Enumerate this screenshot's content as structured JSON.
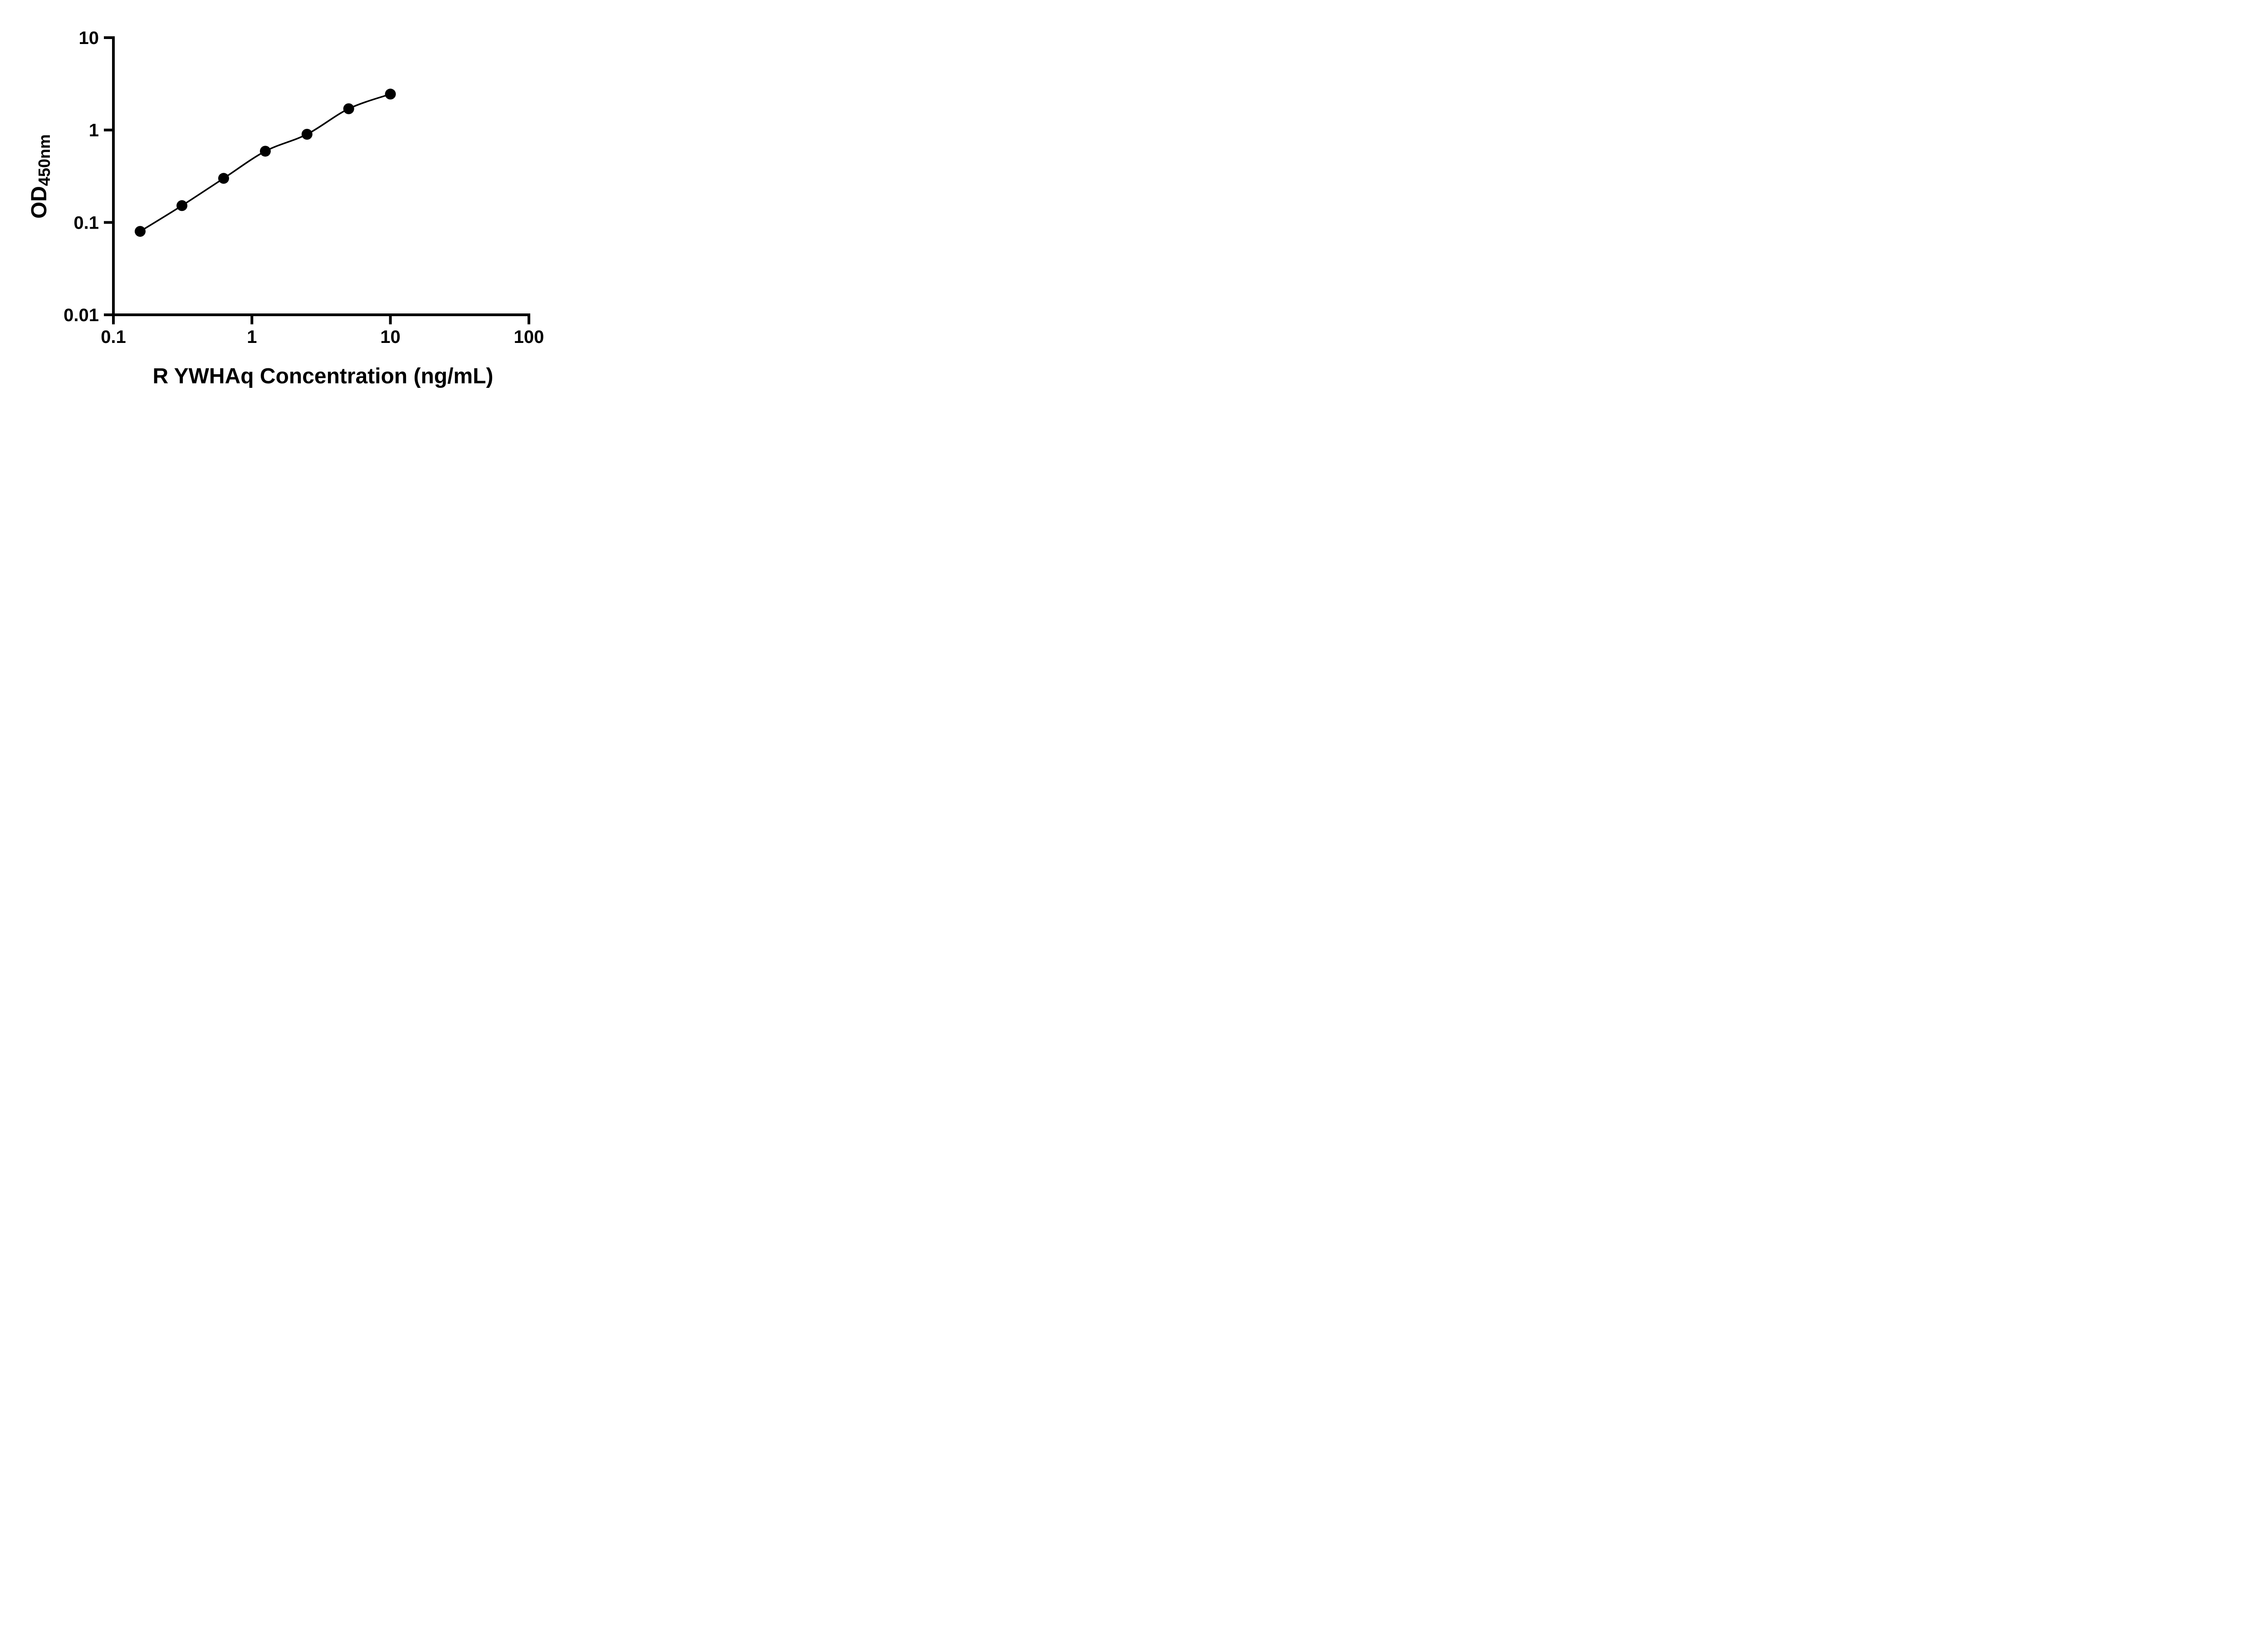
{
  "chart_data": {
    "type": "line",
    "title": "",
    "xlabel": "R YWHAq Concentration (ng/mL)",
    "ylabel_main": "OD",
    "ylabel_sub": "450nm",
    "x_scale": "log",
    "y_scale": "log",
    "xlim": [
      0.1,
      100
    ],
    "ylim": [
      0.01,
      10
    ],
    "grid": false,
    "legend": false,
    "x_ticks": [
      {
        "value": 0.1,
        "label": "0.1"
      },
      {
        "value": 1,
        "label": "1"
      },
      {
        "value": 10,
        "label": "10"
      },
      {
        "value": 100,
        "label": "100"
      }
    ],
    "y_ticks": [
      {
        "value": 0.01,
        "label": "0.01"
      },
      {
        "value": 0.1,
        "label": "0.1"
      },
      {
        "value": 1,
        "label": "1"
      },
      {
        "value": 10,
        "label": "10"
      }
    ],
    "series": [
      {
        "marker": "circle",
        "x": [
          0.156,
          0.3125,
          0.625,
          1.25,
          2.5,
          5,
          10
        ],
        "y": [
          0.08,
          0.152,
          0.3,
          0.59,
          0.9,
          1.7,
          2.45
        ]
      }
    ],
    "colors": {
      "axis": "#000000",
      "line": "#000000",
      "marker": "#000000",
      "background": "#ffffff",
      "text": "#000000"
    }
  }
}
